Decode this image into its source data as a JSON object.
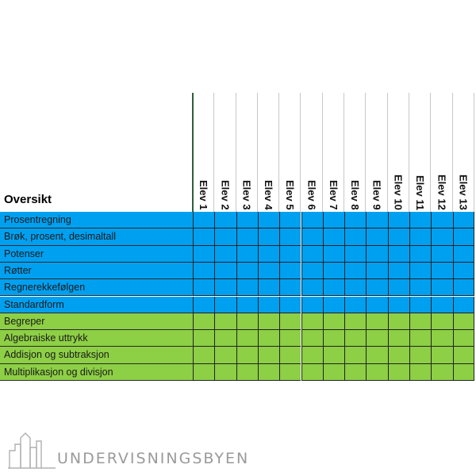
{
  "overview_title": "Oversikt",
  "students": [
    "Elev 1",
    "Elev 2",
    "Elev 3",
    "Elev 4",
    "Elev 5",
    "Elev 6",
    "Elev 7",
    "Elev 8",
    "Elev 9",
    "Elev 10",
    "Elev 11",
    "Elev 12",
    "Elev 13"
  ],
  "topics": [
    {
      "label": "Prosentregning",
      "group": "blue"
    },
    {
      "label": "Brøk, prosent, desimaltall",
      "group": "blue"
    },
    {
      "label": "Potenser",
      "group": "blue"
    },
    {
      "label": "Røtter",
      "group": "blue"
    },
    {
      "label": "Regnerekkefølgen",
      "group": "blue"
    },
    {
      "label": "Standardform",
      "group": "blue"
    },
    {
      "label": "Begreper",
      "group": "green"
    },
    {
      "label": "Algebraiske uttrykk",
      "group": "green"
    },
    {
      "label": "Addisjon og subtraksjon",
      "group": "green"
    },
    {
      "label": "Multiplikasjon og divisjon",
      "group": "green"
    }
  ],
  "colors": {
    "blue": "#00a0f0",
    "green": "#8dcf45"
  },
  "logo": {
    "text": "UNDERVISNINGSBYEN",
    "icon": "city-skyline-icon"
  }
}
